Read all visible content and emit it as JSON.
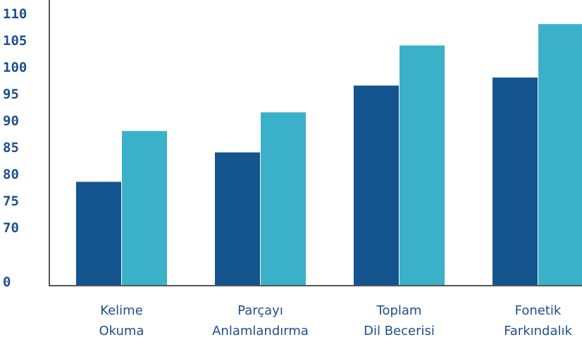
{
  "chart_data": {
    "type": "bar",
    "categories": [
      [
        "Kelime",
        "Okuma"
      ],
      [
        "Parçayı",
        "Anlamlandırma"
      ],
      [
        "Toplam",
        "Dil Becerisi"
      ],
      [
        "Fonetik",
        "Farkındalık"
      ]
    ],
    "series": [
      {
        "values": [
          78.5,
          84,
          96.5,
          98
        ],
        "color": "#14548f"
      },
      {
        "values": [
          88,
          91.5,
          104,
          108
        ],
        "color": "#3bb1c9"
      }
    ],
    "yticks": [
      "0",
      "70",
      "75",
      "80",
      "85",
      "90",
      "95",
      "100",
      "105",
      "110"
    ],
    "axis_break": {
      "from": 0,
      "to": 70
    },
    "ylim": [
      0,
      110
    ],
    "grid": false,
    "title": "",
    "xlabel": "",
    "ylabel": "",
    "colors": {
      "axis": "#555555",
      "tick_text": "#1e4f8c"
    }
  }
}
